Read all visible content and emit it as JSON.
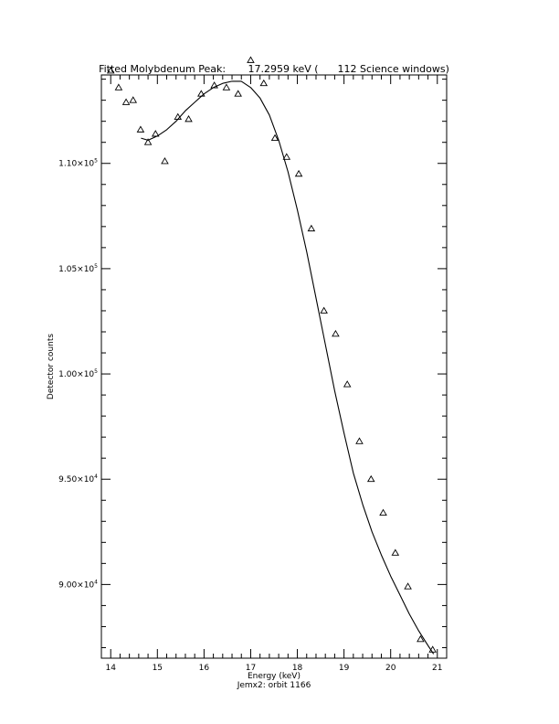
{
  "chart_data": {
    "type": "scatter",
    "title": "Fitted Molybdenum Peak:       17.2959 keV (      112 Science windows)",
    "xlabel": "Energy (keV)",
    "subtitle": "Jemx2: orbit 1166",
    "ylabel": "Detector counts",
    "xlim": [
      13.8,
      21.2
    ],
    "ylim": [
      86500,
      114200
    ],
    "x_ticks": [
      14,
      15,
      16,
      17,
      18,
      19,
      20,
      21
    ],
    "x_tick_labels": [
      "14",
      "15",
      "16",
      "17",
      "18",
      "19",
      "20",
      "21"
    ],
    "y_ticks": [
      90000,
      95000,
      100000,
      105000,
      110000
    ],
    "y_tick_labels": [
      {
        "mant": "9.00×10",
        "exp": "4"
      },
      {
        "mant": "9.50×10",
        "exp": "4"
      },
      {
        "mant": "1.00×10",
        "exp": "5"
      },
      {
        "mant": "1.05×10",
        "exp": "5"
      },
      {
        "mant": "1.10×10",
        "exp": "5"
      }
    ],
    "series": [
      {
        "marker": "triangle",
        "x": [
          14.0,
          14.17,
          14.33,
          14.48,
          14.64,
          14.8,
          14.96,
          15.16,
          15.44,
          15.67,
          15.94,
          16.22,
          16.48,
          16.73,
          17.0,
          17.28,
          17.52,
          17.77,
          18.03,
          18.3,
          18.57,
          18.82,
          19.07,
          19.33,
          19.58,
          19.84,
          20.1,
          20.37,
          20.64,
          20.9
        ],
        "y": [
          114400,
          113600,
          112900,
          113000,
          111600,
          111000,
          111400,
          110100,
          112200,
          112100,
          113300,
          113700,
          113600,
          113300,
          114900,
          113800,
          111200,
          110300,
          109500,
          106900,
          103000,
          101900,
          99500,
          96800,
          95000,
          93400,
          91500,
          89900,
          87400,
          86900
        ]
      },
      {
        "marker": "line",
        "x": [
          14.65,
          14.8,
          15.0,
          15.2,
          15.4,
          15.6,
          15.8,
          16.0,
          16.2,
          16.4,
          16.6,
          16.8,
          17.0,
          17.2,
          17.4,
          17.6,
          17.8,
          18.0,
          18.2,
          18.4,
          18.6,
          18.8,
          19.0,
          19.2,
          19.4,
          19.6,
          19.8,
          20.0,
          20.2,
          20.4,
          20.6,
          20.8,
          20.92
        ],
        "y": [
          111200,
          111100,
          111300,
          111600,
          112000,
          112500,
          112900,
          113300,
          113600,
          113800,
          113900,
          113900,
          113600,
          113100,
          112300,
          111100,
          109600,
          107800,
          105800,
          103600,
          101400,
          99200,
          97200,
          95300,
          93800,
          92500,
          91400,
          90400,
          89500,
          88600,
          87800,
          87100,
          86700
        ]
      }
    ]
  }
}
